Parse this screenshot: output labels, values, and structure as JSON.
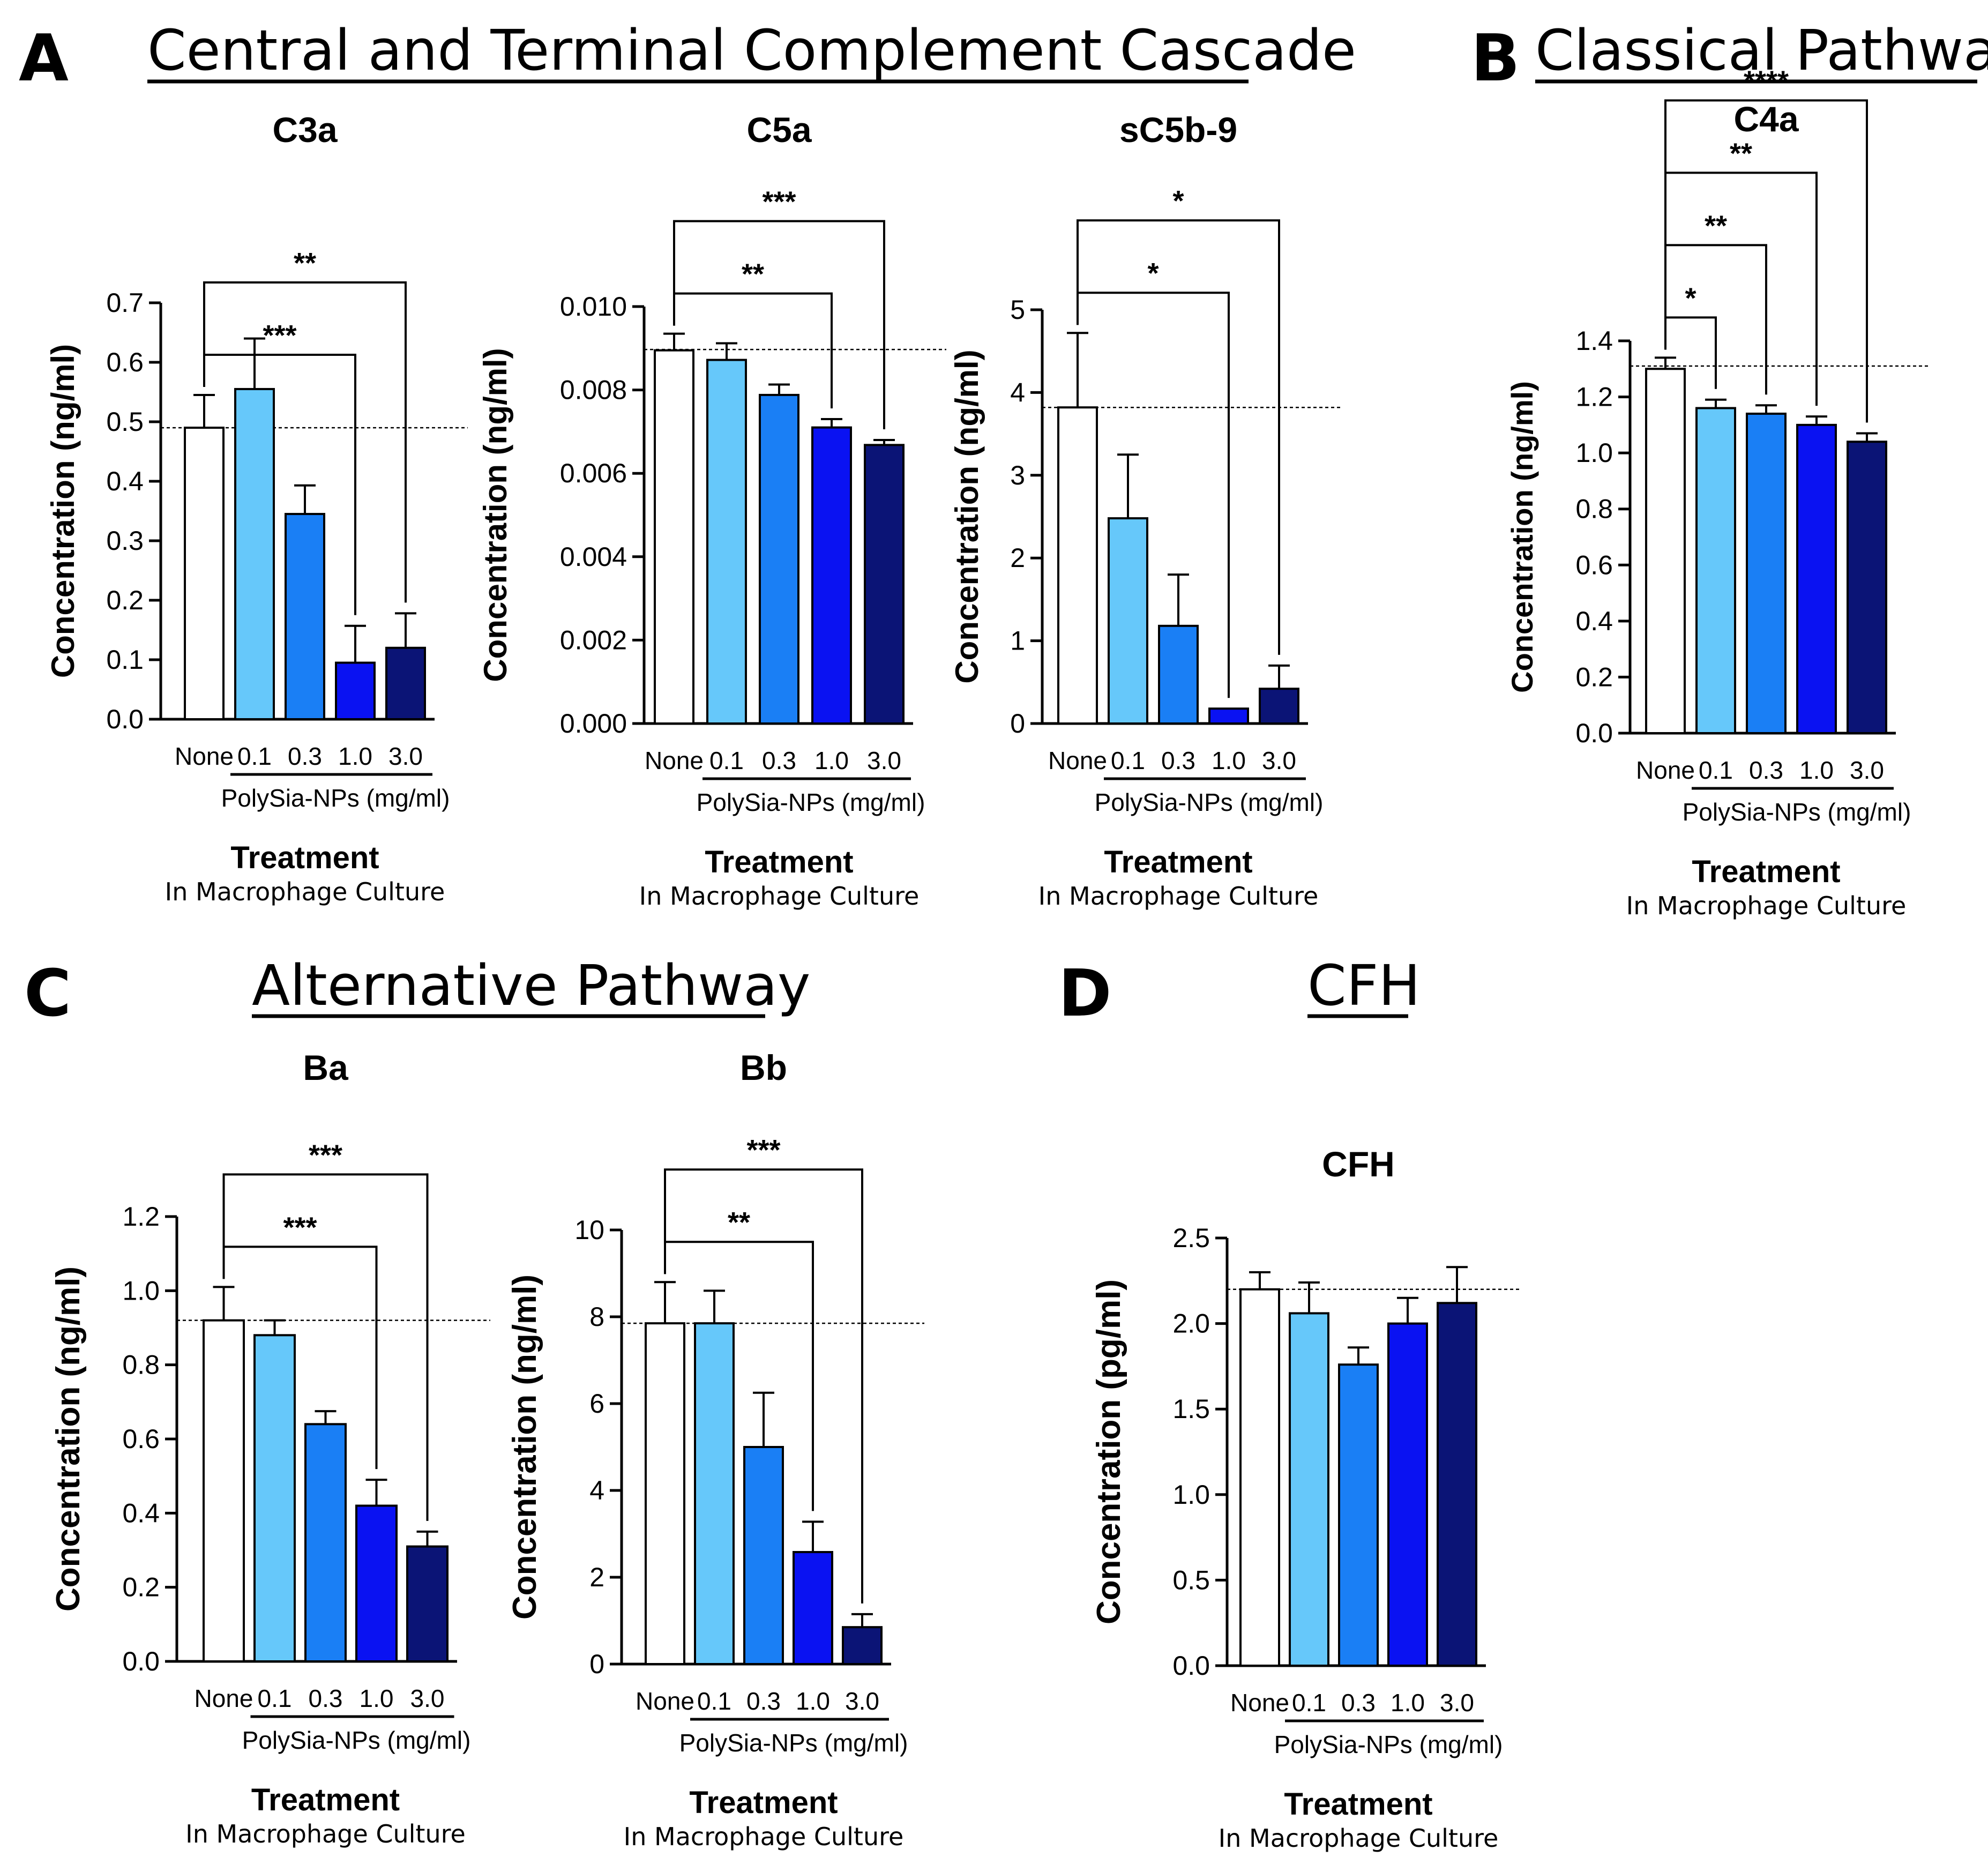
{
  "panels": {
    "A": {
      "letter": "A",
      "title": "Central and Terminal Complement Cascade"
    },
    "B": {
      "letter": "B",
      "title": "Classical Pathway"
    },
    "C": {
      "letter": "C",
      "title": "Alternative Pathway"
    },
    "D": {
      "letter": "D",
      "title": "CFH"
    }
  },
  "common": {
    "none_label": "None",
    "group_label": "PolySia-NPs (mg/ml)",
    "treatment_label": "Treatment",
    "treatment_sub": "In Macrophage Culture",
    "colors": {
      "none": "#ffffff",
      "0.1": "#66c8fa",
      "0.3": "#1a7ff5",
      "1.0": "#0a12f2",
      "3.0": "#0b1476",
      "line": "#000000"
    }
  },
  "chart_data": [
    {
      "id": "c3a",
      "type": "bar",
      "title": "C3a",
      "ylabel": "Concentration (ng/ml)",
      "categories": [
        "None",
        "0.1",
        "0.3",
        "1.0",
        "3.0"
      ],
      "values": [
        0.49,
        0.555,
        0.345,
        0.095,
        0.12
      ],
      "errors": [
        0.055,
        0.085,
        0.048,
        0.062,
        0.058
      ],
      "ylim": [
        0,
        0.7
      ],
      "ticks": [
        "0.0",
        "0.1",
        "0.2",
        "0.3",
        "0.4",
        "0.5",
        "0.6",
        "0.7"
      ],
      "reference": 0.49,
      "brackets": [
        {
          "to": "1.0",
          "stars": "***"
        },
        {
          "to": "3.0",
          "stars": "**"
        }
      ]
    },
    {
      "id": "c5a",
      "type": "bar",
      "title": "C5a",
      "ylabel": "Concentration (ng/ml)",
      "categories": [
        "None",
        "0.1",
        "0.3",
        "1.0",
        "3.0"
      ],
      "values": [
        0.00895,
        0.00872,
        0.00788,
        0.0071,
        0.00668
      ],
      "errors": [
        0.0004,
        0.0004,
        0.00025,
        0.0002,
        0.00012
      ],
      "ylim": [
        0,
        0.01
      ],
      "ticks": [
        "0.000",
        "0.002",
        "0.004",
        "0.006",
        "0.008",
        "0.010"
      ],
      "reference": 0.00897,
      "brackets": [
        {
          "to": "1.0",
          "stars": "**"
        },
        {
          "to": "3.0",
          "stars": "***"
        }
      ]
    },
    {
      "id": "sc5b9",
      "type": "bar",
      "title": "sC5b-9",
      "ylabel": "Concentration (ng/ml)",
      "categories": [
        "None",
        "0.1",
        "0.3",
        "1.0",
        "3.0"
      ],
      "values": [
        3.82,
        2.48,
        1.18,
        0.18,
        0.42
      ],
      "errors": [
        0.9,
        0.77,
        0.62,
        0.0,
        0.28
      ],
      "ylim": [
        0,
        5
      ],
      "ticks": [
        "0",
        "1",
        "2",
        "3",
        "4",
        "5"
      ],
      "reference": 3.82,
      "brackets": [
        {
          "to": "1.0",
          "stars": "*"
        },
        {
          "to": "3.0",
          "stars": "*"
        }
      ]
    },
    {
      "id": "c4a",
      "type": "bar",
      "title": "C4a",
      "ylabel": "Concentration (ng/ml)",
      "categories": [
        "None",
        "0.1",
        "0.3",
        "1.0",
        "3.0"
      ],
      "values": [
        1.3,
        1.16,
        1.14,
        1.1,
        1.04
      ],
      "errors": [
        0.04,
        0.03,
        0.03,
        0.03,
        0.03
      ],
      "ylim": [
        0,
        1.4
      ],
      "ticks": [
        "0.0",
        "0.2",
        "0.4",
        "0.6",
        "0.8",
        "1.0",
        "1.2",
        "1.4"
      ],
      "reference": 1.31,
      "brackets": [
        {
          "to": "0.1",
          "stars": "*"
        },
        {
          "to": "0.3",
          "stars": "**"
        },
        {
          "to": "1.0",
          "stars": "**"
        },
        {
          "to": "3.0",
          "stars": "****"
        }
      ]
    },
    {
      "id": "ba",
      "type": "bar",
      "title": "Ba",
      "ylabel": "Concentration (ng/ml)",
      "categories": [
        "None",
        "0.1",
        "0.3",
        "1.0",
        "3.0"
      ],
      "values": [
        0.92,
        0.88,
        0.64,
        0.42,
        0.31
      ],
      "errors": [
        0.09,
        0.04,
        0.035,
        0.07,
        0.04
      ],
      "ylim": [
        0,
        1.2
      ],
      "ticks": [
        "0.0",
        "0.2",
        "0.4",
        "0.6",
        "0.8",
        "1.0",
        "1.2"
      ],
      "reference": 0.92,
      "brackets": [
        {
          "to": "1.0",
          "stars": "***"
        },
        {
          "to": "3.0",
          "stars": "***"
        }
      ]
    },
    {
      "id": "bb",
      "type": "bar",
      "title": "Bb",
      "ylabel": "Concentration (ng/ml)",
      "categories": [
        "None",
        "0.1",
        "0.3",
        "1.0",
        "3.0"
      ],
      "values": [
        7.85,
        7.85,
        5.0,
        2.58,
        0.85
      ],
      "errors": [
        0.95,
        0.75,
        1.25,
        0.7,
        0.3
      ],
      "ylim": [
        0,
        10
      ],
      "ticks": [
        "0",
        "2",
        "4",
        "6",
        "8",
        "10"
      ],
      "reference": 7.85,
      "brackets": [
        {
          "to": "1.0",
          "stars": "**"
        },
        {
          "to": "3.0",
          "stars": "***"
        }
      ]
    },
    {
      "id": "cfh",
      "type": "bar",
      "title": "CFH",
      "ylabel": "Concentration (pg/ml)",
      "categories": [
        "None",
        "0.1",
        "0.3",
        "1.0",
        "3.0"
      ],
      "values": [
        2.2,
        2.06,
        1.76,
        2.0,
        2.12
      ],
      "errors": [
        0.1,
        0.18,
        0.1,
        0.15,
        0.21
      ],
      "ylim": [
        0,
        2.5
      ],
      "ticks": [
        "0.0",
        "0.5",
        "1.0",
        "1.5",
        "2.0",
        "2.5"
      ],
      "reference": 2.2,
      "brackets": []
    }
  ]
}
